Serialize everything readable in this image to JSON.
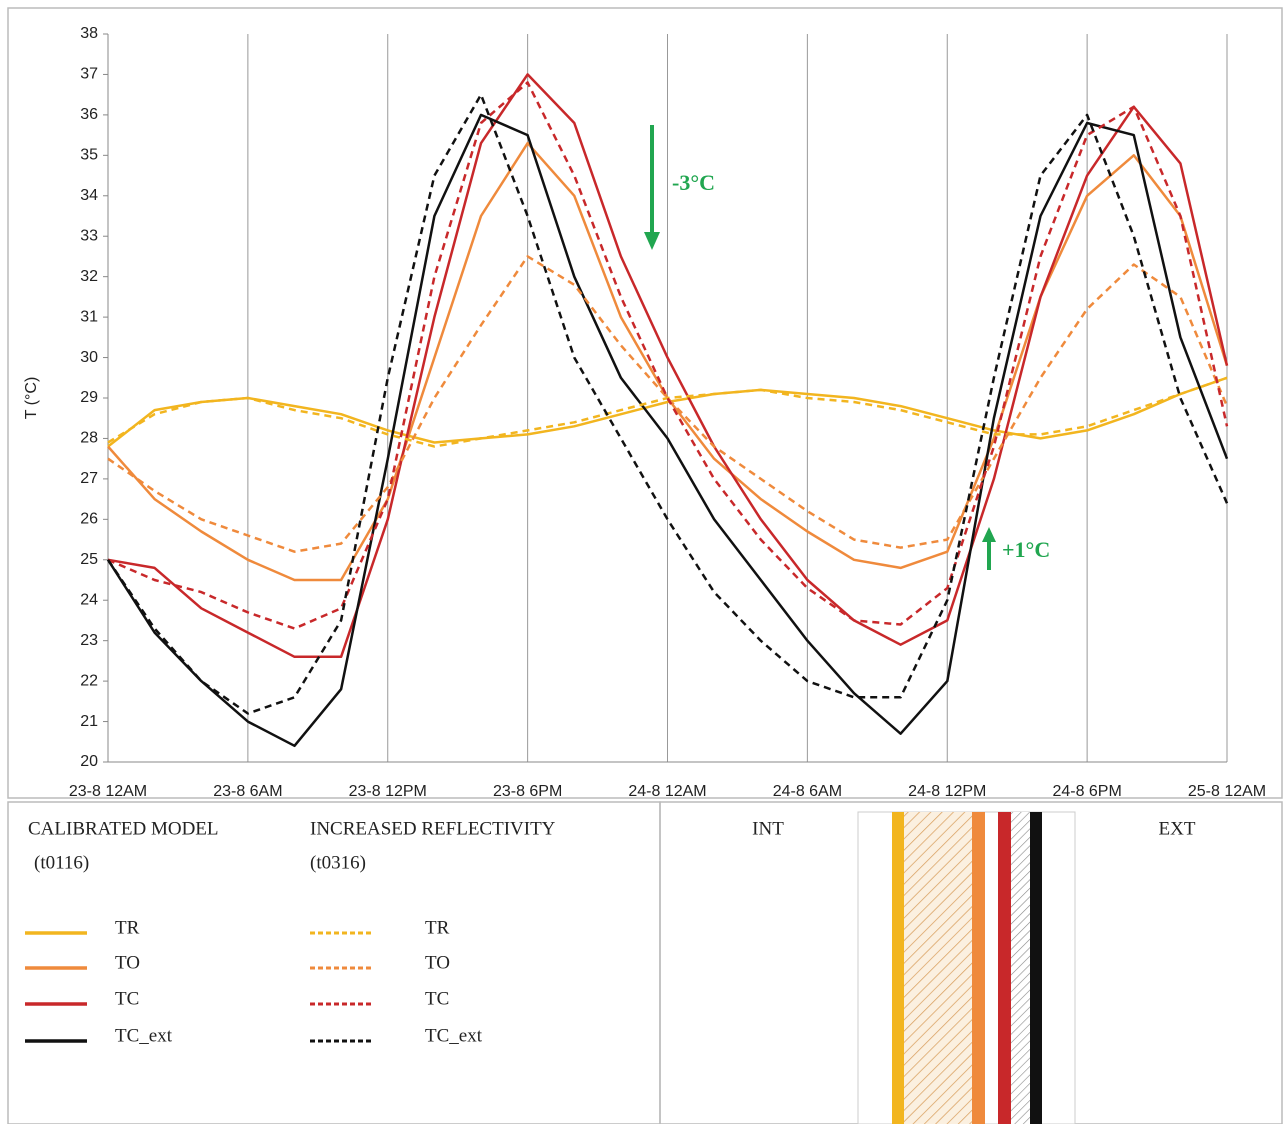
{
  "chart_data": {
    "type": "line",
    "y_label": "T (°C)",
    "xlim": [
      0,
      48
    ],
    "xticks": [
      {
        "value": 0,
        "label": "23-8 12AM"
      },
      {
        "value": 6,
        "label": "23-8 6AM"
      },
      {
        "value": 12,
        "label": "23-8 12PM"
      },
      {
        "value": 18,
        "label": "23-8 6PM"
      },
      {
        "value": 24,
        "label": "24-8 12AM"
      },
      {
        "value": 30,
        "label": "24-8 6AM"
      },
      {
        "value": 36,
        "label": "24-8 12PM"
      },
      {
        "value": 42,
        "label": "24-8 6PM"
      },
      {
        "value": 48,
        "label": "25-8 12AM"
      }
    ],
    "ylim": [
      20,
      38
    ],
    "yticks": [
      20,
      21,
      22,
      23,
      24,
      25,
      26,
      27,
      28,
      29,
      30,
      31,
      32,
      33,
      34,
      35,
      36,
      37,
      38
    ],
    "grid": true,
    "x": [
      0,
      2,
      4,
      6,
      8,
      10,
      12,
      14,
      16,
      18,
      20,
      22,
      24,
      26,
      28,
      30,
      32,
      34,
      36,
      38,
      40,
      42,
      44,
      46,
      48
    ],
    "legend_groups": [
      {
        "title": "CALIBRATED MODEL",
        "subtitle": "(t0116)"
      },
      {
        "title": "INCREASED REFLECTIVITY",
        "subtitle": "(t0316)"
      }
    ],
    "series": [
      {
        "name": "TR",
        "color": "#f2b51f",
        "dashed": false,
        "values": [
          27.8,
          28.7,
          28.9,
          29.0,
          28.8,
          28.6,
          28.2,
          27.9,
          28.0,
          28.1,
          28.3,
          28.6,
          28.9,
          29.1,
          29.2,
          29.1,
          29.0,
          28.8,
          28.5,
          28.2,
          28.0,
          28.2,
          28.6,
          29.1,
          29.5
        ]
      },
      {
        "name": "TO",
        "color": "#ef8a3c",
        "dashed": false,
        "values": [
          27.8,
          26.5,
          25.7,
          25.0,
          24.5,
          24.5,
          26.5,
          30.0,
          33.5,
          35.3,
          34.0,
          31.0,
          29.0,
          27.5,
          26.5,
          25.7,
          25.0,
          24.8,
          25.2,
          28.0,
          31.5,
          34.0,
          35.0,
          33.5,
          29.8
        ]
      },
      {
        "name": "TC",
        "color": "#c8282a",
        "dashed": false,
        "values": [
          25.0,
          24.8,
          23.8,
          23.2,
          22.6,
          22.6,
          26.0,
          31.0,
          35.3,
          37.0,
          35.8,
          32.5,
          30.0,
          27.8,
          26.0,
          24.5,
          23.5,
          22.9,
          23.5,
          27.0,
          31.5,
          34.5,
          36.2,
          34.8,
          29.8
        ]
      },
      {
        "name": "TC_ext",
        "color": "#111111",
        "dashed": false,
        "values": [
          25.0,
          23.2,
          22.0,
          21.0,
          20.4,
          21.8,
          27.5,
          33.5,
          36.0,
          35.5,
          32.0,
          29.5,
          28.0,
          26.0,
          24.5,
          23.0,
          21.7,
          20.7,
          22.0,
          28.5,
          33.5,
          35.8,
          35.5,
          30.5,
          27.5
        ]
      },
      {
        "name": "TR",
        "color": "#f2b51f",
        "dashed": true,
        "values": [
          27.9,
          28.6,
          28.9,
          29.0,
          28.7,
          28.5,
          28.1,
          27.8,
          28.0,
          28.2,
          28.4,
          28.7,
          29.0,
          29.1,
          29.2,
          29.0,
          28.9,
          28.7,
          28.4,
          28.1,
          28.1,
          28.3,
          28.7,
          29.1,
          29.5
        ]
      },
      {
        "name": "TO",
        "color": "#ef8a3c",
        "dashed": true,
        "values": [
          27.5,
          26.7,
          26.0,
          25.6,
          25.2,
          25.4,
          26.8,
          29.0,
          30.8,
          32.5,
          31.8,
          30.3,
          29.0,
          27.8,
          27.0,
          26.2,
          25.5,
          25.3,
          25.5,
          27.5,
          29.5,
          31.2,
          32.3,
          31.5,
          28.8
        ]
      },
      {
        "name": "TC",
        "color": "#c8282a",
        "dashed": true,
        "values": [
          25.0,
          24.5,
          24.2,
          23.7,
          23.3,
          23.8,
          26.5,
          32.0,
          35.8,
          36.8,
          34.5,
          31.5,
          29.0,
          27.0,
          25.5,
          24.3,
          23.5,
          23.4,
          24.3,
          27.8,
          32.5,
          35.5,
          36.2,
          33.5,
          28.3
        ]
      },
      {
        "name": "TC_ext",
        "color": "#111111",
        "dashed": true,
        "values": [
          25.0,
          23.3,
          22.0,
          21.2,
          21.6,
          23.5,
          29.5,
          34.5,
          36.5,
          33.5,
          30.0,
          28.0,
          26.0,
          24.2,
          23.0,
          22.0,
          21.6,
          21.6,
          24.0,
          29.5,
          34.5,
          36.0,
          33.0,
          29.0,
          26.4
        ]
      }
    ],
    "annotations": [
      "-3°C",
      "+1°C"
    ],
    "wall_labels": [
      "INT",
      "EXT"
    ]
  }
}
